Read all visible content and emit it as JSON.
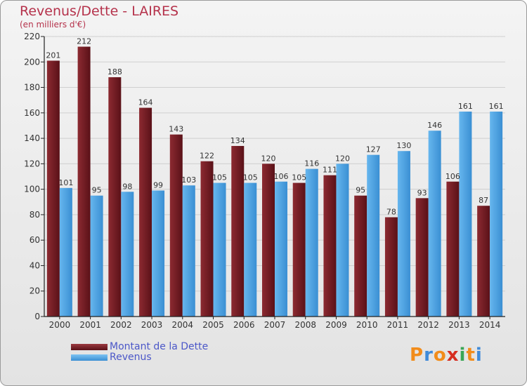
{
  "title": "Revenus/Dette - LAIRES",
  "subtitle": "(en milliers d'€)",
  "colors": {
    "debt": "#7a1f26",
    "revenue": "#4ba3e3",
    "axis": "#222222",
    "grid": "#cfcfcf"
  },
  "chart_data": {
    "type": "bar",
    "categories": [
      "2000",
      "2001",
      "2002",
      "2003",
      "2004",
      "2005",
      "2006",
      "2007",
      "2008",
      "2009",
      "2010",
      "2011",
      "2012",
      "2013",
      "2014"
    ],
    "series": [
      {
        "name": "Montant de la Dette",
        "values": [
          201,
          212,
          188,
          164,
          143,
          122,
          134,
          120,
          105,
          111,
          95,
          78,
          93,
          106,
          87
        ]
      },
      {
        "name": "Revenus",
        "values": [
          101,
          95,
          98,
          99,
          103,
          105,
          105,
          106,
          116,
          120,
          127,
          130,
          146,
          161,
          161
        ]
      }
    ],
    "ylim": [
      0,
      220
    ],
    "yticks": [
      0,
      20,
      40,
      60,
      80,
      100,
      120,
      140,
      160,
      180,
      200,
      220
    ],
    "grid": true,
    "legend": "bottom-left"
  },
  "legend": {
    "debt_label": "Montant de la Dette",
    "revenue_label": "Revenus"
  },
  "logo": {
    "letters": [
      "P",
      "r",
      "o",
      "x",
      "i",
      "t",
      "i"
    ],
    "colors": [
      "#f28c1a",
      "#3f8ad8",
      "#f28c1a",
      "#d62d20",
      "#3aa655",
      "#f28c1a",
      "#3f8ad8"
    ]
  }
}
